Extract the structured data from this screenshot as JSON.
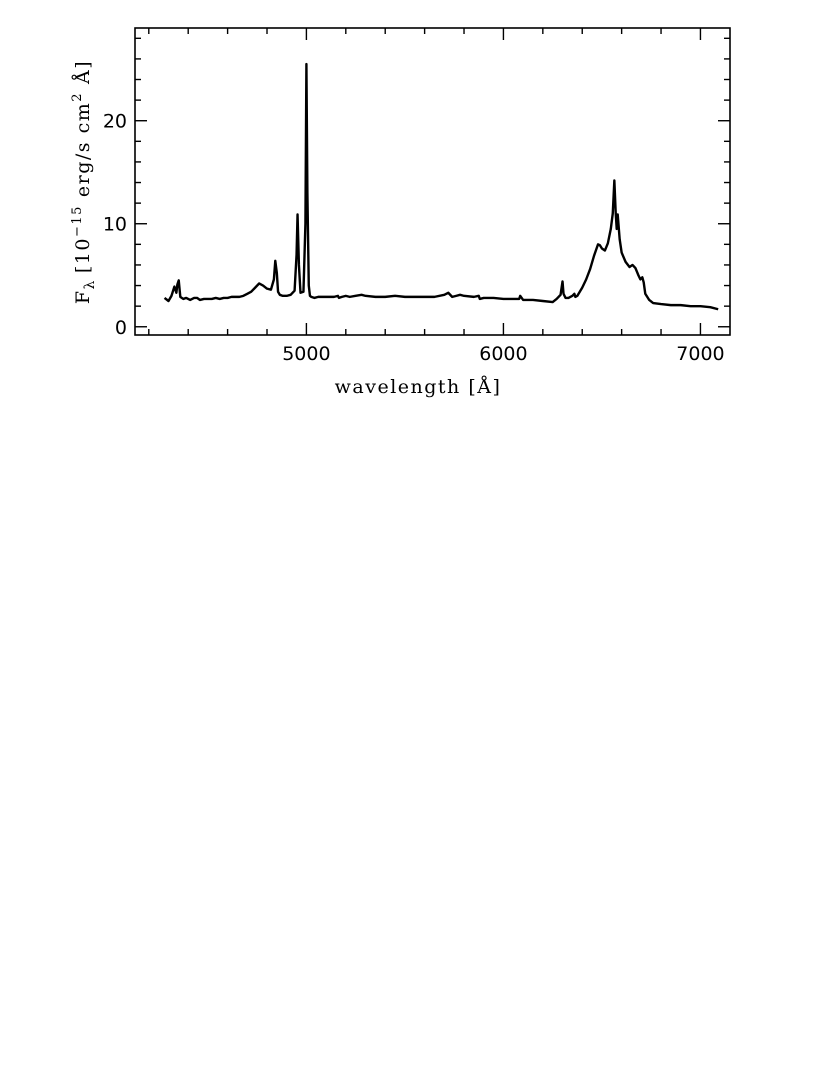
{
  "chart_data": {
    "type": "line",
    "xlabel": "wavelength [Å]",
    "ylabel_main": "F",
    "ylabel_sub": "λ",
    "ylabel_rest": "[10",
    "ylabel_exp": "−15",
    "ylabel_units": "erg/s cm",
    "ylabel_exp2": "2",
    "ylabel_end": "Å]",
    "xlim": [
      4130,
      7150
    ],
    "ylim": [
      -0.8,
      29.0
    ],
    "x_ticks": [
      5000,
      6000,
      7000
    ],
    "x_tick_labels": [
      "5000",
      "6000",
      "7000"
    ],
    "y_ticks": [
      0,
      10,
      20
    ],
    "y_tick_labels": [
      "0",
      "10",
      "20"
    ],
    "x_minor_step": 200,
    "y_minor_step": 2,
    "grid": false,
    "series": [
      {
        "x": [
          4280,
          4300,
          4315,
          4330,
          4340,
          4345,
          4352,
          4360,
          4375,
          4390,
          4410,
          4430,
          4445,
          4460,
          4480,
          4500,
          4520,
          4540,
          4560,
          4580,
          4600,
          4620,
          4640,
          4660,
          4680,
          4700,
          4720,
          4740,
          4760,
          4780,
          4800,
          4820,
          4835,
          4842,
          4850,
          4856,
          4865,
          4880,
          4900,
          4920,
          4940,
          4950,
          4955,
          4962,
          4970,
          4985,
          4995,
          5000,
          5005,
          5012,
          5018,
          5025,
          5040,
          5060,
          5080,
          5100,
          5120,
          5140,
          5160,
          5165,
          5180,
          5200,
          5220,
          5250,
          5280,
          5300,
          5350,
          5400,
          5450,
          5500,
          5550,
          5600,
          5650,
          5700,
          5720,
          5740,
          5760,
          5780,
          5800,
          5850,
          5875,
          5880,
          5900,
          5950,
          6000,
          6050,
          6080,
          6085,
          6100,
          6150,
          6200,
          6250,
          6270,
          6290,
          6300,
          6305,
          6315,
          6330,
          6350,
          6360,
          6365,
          6375,
          6400,
          6420,
          6440,
          6460,
          6480,
          6490,
          6500,
          6515,
          6530,
          6545,
          6555,
          6563,
          6570,
          6575,
          6580,
          6590,
          6600,
          6620,
          6640,
          6655,
          6670,
          6685,
          6695,
          6705,
          6712,
          6720,
          6740,
          6760,
          6800,
          6850,
          6900,
          6950,
          7000,
          7050,
          7090
        ],
        "y": [
          2.8,
          2.5,
          3.0,
          3.9,
          3.3,
          4.1,
          4.5,
          2.9,
          2.7,
          2.8,
          2.6,
          2.8,
          2.8,
          2.6,
          2.7,
          2.7,
          2.7,
          2.8,
          2.7,
          2.8,
          2.8,
          2.9,
          2.9,
          2.9,
          3.0,
          3.2,
          3.4,
          3.8,
          4.2,
          4.0,
          3.7,
          3.6,
          4.6,
          6.4,
          5.2,
          3.4,
          3.1,
          3.0,
          3.0,
          3.1,
          3.5,
          7.0,
          10.9,
          6.0,
          3.3,
          3.4,
          10.0,
          25.5,
          13.0,
          4.0,
          3.0,
          2.9,
          2.8,
          2.9,
          2.9,
          2.9,
          2.9,
          2.9,
          3.0,
          2.8,
          2.9,
          3.0,
          2.9,
          3.0,
          3.1,
          3.0,
          2.9,
          2.9,
          3.0,
          2.9,
          2.9,
          2.9,
          2.9,
          3.1,
          3.3,
          2.9,
          3.0,
          3.1,
          3.0,
          2.9,
          3.0,
          2.7,
          2.8,
          2.8,
          2.7,
          2.7,
          2.7,
          3.0,
          2.6,
          2.6,
          2.5,
          2.4,
          2.7,
          3.1,
          4.4,
          3.2,
          2.8,
          2.8,
          3.0,
          3.2,
          2.9,
          3.0,
          3.8,
          4.6,
          5.6,
          6.9,
          8.0,
          7.9,
          7.6,
          7.4,
          8.1,
          9.5,
          11.0,
          14.2,
          11.0,
          9.5,
          10.9,
          8.5,
          7.2,
          6.3,
          5.8,
          6.0,
          5.7,
          5.0,
          4.6,
          4.8,
          4.3,
          3.2,
          2.6,
          2.3,
          2.2,
          2.1,
          2.1,
          2.0,
          2.0,
          1.9,
          1.7
        ]
      }
    ]
  }
}
